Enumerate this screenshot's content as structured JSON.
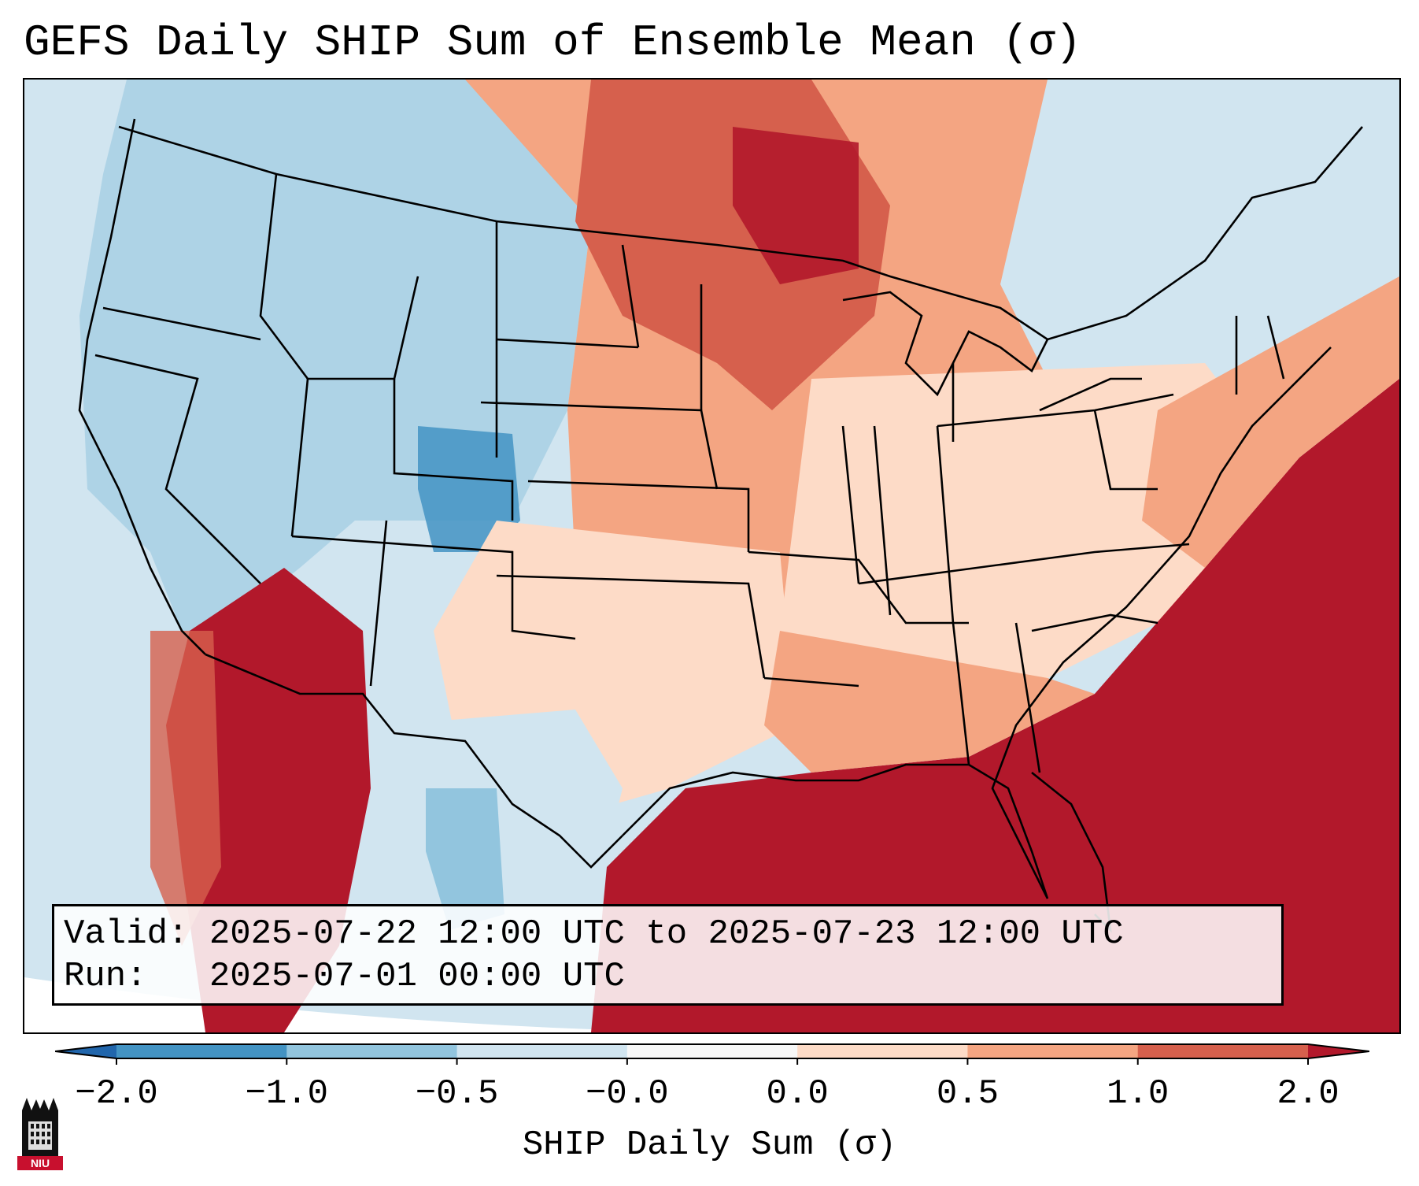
{
  "title": "GEFS Daily SHIP Sum of Ensemble Mean (σ)",
  "infobox": {
    "valid_label": "Valid:",
    "valid_value": "2025-07-22 12:00 UTC to 2025-07-23 12:00 UTC",
    "run_label": "Run:",
    "run_value": "2025-07-01 00:00 UTC"
  },
  "colorbar": {
    "label": "SHIP Daily Sum (σ)",
    "ticks": [
      "−2.0",
      "−1.0",
      "−0.5",
      "−0.0",
      "0.0",
      "0.5",
      "1.0",
      "2.0"
    ],
    "colors": [
      "#2166ac",
      "#4393c3",
      "#92c5de",
      "#d1e5f0",
      "#f7f7f7",
      "#fddbc7",
      "#f4a582",
      "#d6604d",
      "#b2182b"
    ],
    "extend": "both"
  },
  "logo": {
    "text": "NIU",
    "name": "niu-logo"
  },
  "map": {
    "region": "Contiguous United States",
    "ocean_color": "#d1e5f0",
    "features": [
      "state-borders",
      "country-borders",
      "coastlines",
      "great-lakes"
    ]
  }
}
